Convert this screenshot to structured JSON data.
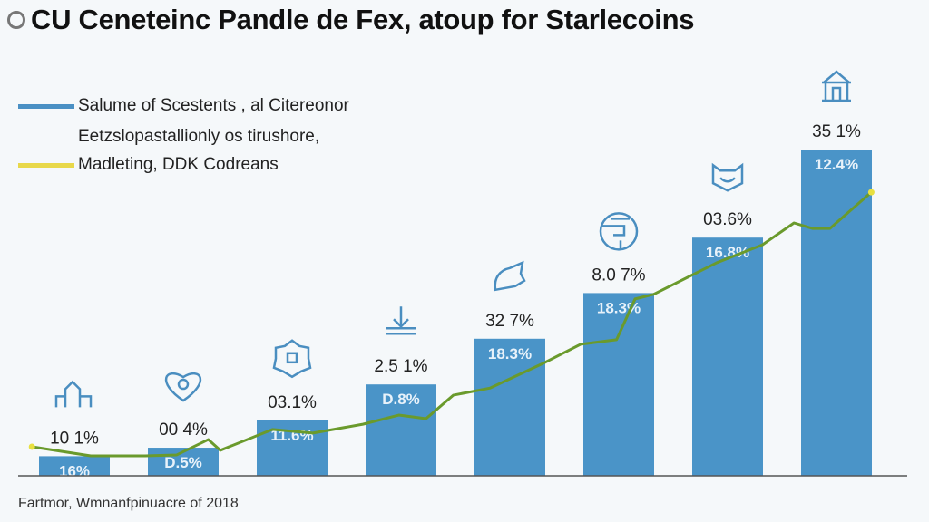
{
  "title": "CU Ceneteinc Pandle de Fex, atoup for Starlecoins",
  "legend": [
    {
      "label": "Salume of Scestents , al Citereonor",
      "color": "#4a90c4"
    },
    {
      "label": "Eetzslopastallionly os tirushore,",
      "color": ""
    },
    {
      "label": "Madleting, DDK Codreans",
      "color": "#e8d84a"
    }
  ],
  "source": "Fartmor, Wmnanfpinuacre of 2018",
  "colors": {
    "bar": "#4a94c8",
    "line": "#6a9a2c",
    "line_marker": "#e8e040",
    "icon": "#4a8ec0"
  },
  "chart_data": {
    "type": "bar",
    "title": "CU Ceneteinc Pandle de Fex, atoup for Starlecoins",
    "xlabel": "",
    "ylabel": "",
    "ylim": [
      0,
      100
    ],
    "grid": false,
    "legend_placement": "top-left",
    "series": [
      {
        "name": "Salume of Scestents , al Citereonor",
        "type": "bar",
        "values": [
          6,
          8.6,
          17,
          28,
          42,
          56,
          73,
          100
        ],
        "inside_labels": [
          "16%",
          "D.5%",
          "11.6%",
          "D.8%",
          "18.3%",
          "18.3%",
          "16.8%",
          "12.4%"
        ],
        "top_labels": [
          "10 1%",
          "00 4%",
          "03.1%",
          "2.5 1%",
          "32 7%",
          "8.0 7%",
          "03.6%",
          "35 1%"
        ],
        "icons": [
          "buildings-icon",
          "heart-coin-icon",
          "gear-coin-icon",
          "download-icon",
          "hand-coin-icon",
          "globe-icon",
          "shield-icon",
          "bank-icon"
        ]
      },
      {
        "name": "Madleting, DDK Codreans",
        "type": "line",
        "points": [
          [
            -0.39,
            8.9
          ],
          [
            0.15,
            6.1
          ],
          [
            0.65,
            6.1
          ],
          [
            0.94,
            6.4
          ],
          [
            1.23,
            11.1
          ],
          [
            1.34,
            7.8
          ],
          [
            1.82,
            14.2
          ],
          [
            2.19,
            13.1
          ],
          [
            2.65,
            15.8
          ],
          [
            2.98,
            18.6
          ],
          [
            3.23,
            17.5
          ],
          [
            3.48,
            24.7
          ],
          [
            3.82,
            26.9
          ],
          [
            4.32,
            34.7
          ],
          [
            4.65,
            40.3
          ],
          [
            4.98,
            41.7
          ],
          [
            5.15,
            54.2
          ],
          [
            5.32,
            55.6
          ],
          [
            5.9,
            65.3
          ],
          [
            6.32,
            70.8
          ],
          [
            6.61,
            77.5
          ],
          [
            6.78,
            75.8
          ],
          [
            6.94,
            75.8
          ],
          [
            7.32,
            86.9
          ]
        ]
      }
    ]
  }
}
